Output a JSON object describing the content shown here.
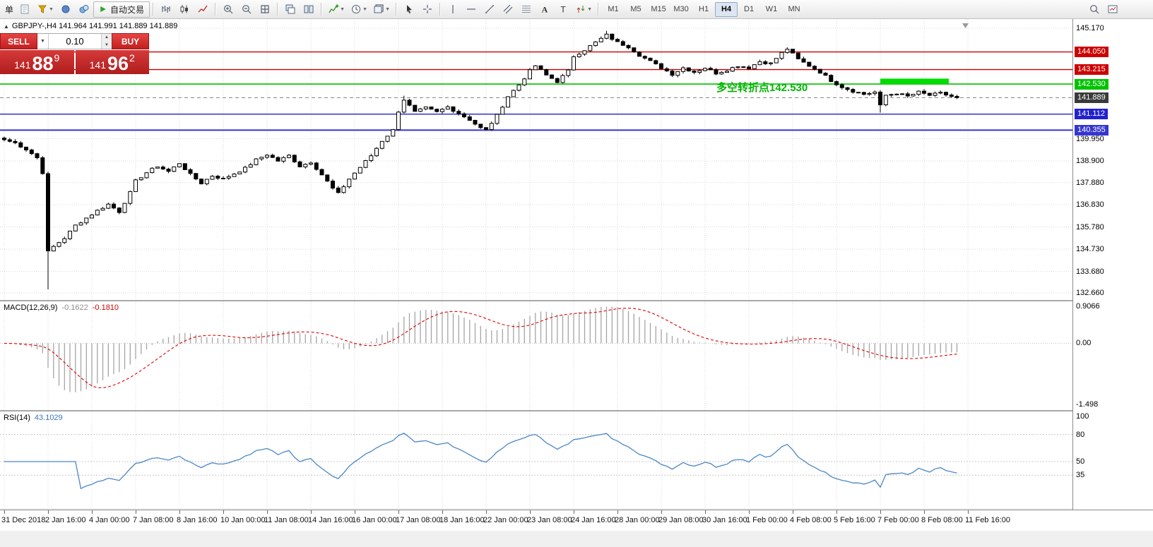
{
  "toolbar": {
    "new_order_label": "单",
    "autotrade_label": "自动交易",
    "icon_groups": [
      [
        "new-order-icon",
        "layouts-icon",
        "metaeditor-icon",
        "terminal-icon"
      ],
      [
        "bar-chart-icon",
        "candlestick-icon",
        "line-chart-icon"
      ],
      [
        "zoom-in-icon",
        "zoom-out-icon",
        "grid-icon"
      ],
      [
        "cascade-windows-icon",
        "tile-windows-icon"
      ],
      [
        "indicators-icon",
        "periods-icon",
        "templates-icon"
      ],
      [
        "cursor-icon",
        "crosshair-icon"
      ],
      [
        "vertical-line-icon",
        "horizontal-line-icon",
        "trendline-icon",
        "channel-icon",
        "fibonacci-icon",
        "text-icon",
        "label-icon",
        "arrows-icon"
      ]
    ],
    "caret_icons": [
      "indicators-icon",
      "periods-icon",
      "templates-icon",
      "arrows-icon",
      "layouts-icon"
    ],
    "timeframes": [
      "M1",
      "M5",
      "M15",
      "M30",
      "H1",
      "H4",
      "D1",
      "W1",
      "MN"
    ],
    "active_timeframe": "H4",
    "right_icons": [
      "search-icon",
      "new-chart-icon"
    ]
  },
  "symbol_header": {
    "toggle_glyph": "▲",
    "text": "GBPJPY-,H4 141.964 141.991 141.889 141.889"
  },
  "trade_panel": {
    "sell_label": "SELL",
    "buy_label": "BUY",
    "volume": "0.10",
    "bid_prefix": "141",
    "bid_big": "88",
    "bid_sup": "9",
    "ask_prefix": "141",
    "ask_big": "96",
    "ask_sup": "2"
  },
  "annotation": {
    "text": "多空转折点142.530",
    "color": "#00b400"
  },
  "chart_data": {
    "type": "candlestick",
    "symbol": "GBPJPY-",
    "timeframe": "H4",
    "quote_line": "141.964 141.991 141.889 141.889",
    "candle_count": 175,
    "last_close": 141.889,
    "price_axis": {
      "max": 145.17,
      "min": 132.66,
      "plain_labels": [
        "145.170",
        "139.950",
        "138.900",
        "137.880",
        "136.830",
        "135.780",
        "134.730",
        "133.680",
        "132.660"
      ]
    },
    "level_lines": [
      {
        "price": 144.05,
        "label": "144.050",
        "color": "#cc0000",
        "width": 1.4,
        "style": "solid"
      },
      {
        "price": 143.215,
        "label": "143.215",
        "color": "#cc0000",
        "width": 1.4,
        "style": "solid"
      },
      {
        "price": 142.53,
        "label": "142.530",
        "color": "#00c300",
        "width": 1.6,
        "style": "solid"
      },
      {
        "price": 141.889,
        "label": "141.889",
        "color": "#808080",
        "width": 1,
        "style": "dashed",
        "badge": "#3a3a3a"
      },
      {
        "price": 141.112,
        "label": "141.112",
        "color": "#2222cc",
        "width": 1.4,
        "style": "solid"
      },
      {
        "price": 140.355,
        "label": "140.355",
        "color": "#3535d0",
        "width": 2,
        "style": "solid"
      }
    ],
    "highlight_zone": {
      "start_index": 160,
      "end_index": 172.5,
      "price_top": 142.79,
      "price_bottom": 142.56,
      "color": "#00dd00"
    },
    "price_path_waypoints": [
      [
        0,
        139.9
      ],
      [
        2,
        139.75
      ],
      [
        4,
        139.45
      ],
      [
        6,
        139.05
      ],
      [
        7,
        138.35
      ],
      [
        8,
        134.6
      ],
      [
        9,
        134.85
      ],
      [
        11,
        135.25
      ],
      [
        13,
        135.85
      ],
      [
        15,
        136.2
      ],
      [
        17,
        136.55
      ],
      [
        19,
        136.85
      ],
      [
        21,
        136.5
      ],
      [
        23,
        137.4
      ],
      [
        24,
        137.95
      ],
      [
        26,
        138.35
      ],
      [
        28,
        138.65
      ],
      [
        30,
        138.4
      ],
      [
        32,
        138.8
      ],
      [
        34,
        138.25
      ],
      [
        36,
        137.85
      ],
      [
        38,
        138.2
      ],
      [
        40,
        138.05
      ],
      [
        42,
        138.3
      ],
      [
        44,
        138.55
      ],
      [
        46,
        138.95
      ],
      [
        48,
        139.2
      ],
      [
        50,
        138.9
      ],
      [
        52,
        139.15
      ],
      [
        54,
        138.65
      ],
      [
        56,
        138.85
      ],
      [
        58,
        138.25
      ],
      [
        60,
        137.6
      ],
      [
        61,
        137.35
      ],
      [
        63,
        138.05
      ],
      [
        65,
        138.6
      ],
      [
        67,
        139.15
      ],
      [
        69,
        139.85
      ],
      [
        71,
        140.35
      ],
      [
        72,
        141.25
      ],
      [
        73,
        141.8
      ],
      [
        75,
        141.2
      ],
      [
        77,
        141.4
      ],
      [
        79,
        141.2
      ],
      [
        81,
        141.45
      ],
      [
        83,
        141.15
      ],
      [
        85,
        140.85
      ],
      [
        87,
        140.45
      ],
      [
        88,
        140.35
      ],
      [
        90,
        141.05
      ],
      [
        92,
        141.95
      ],
      [
        94,
        142.5
      ],
      [
        96,
        143.15
      ],
      [
        97,
        143.4
      ],
      [
        99,
        142.95
      ],
      [
        101,
        142.65
      ],
      [
        103,
        143.15
      ],
      [
        104,
        143.85
      ],
      [
        106,
        144.15
      ],
      [
        108,
        144.5
      ],
      [
        110,
        144.85
      ],
      [
        112,
        144.5
      ],
      [
        114,
        144.3
      ],
      [
        116,
        143.9
      ],
      [
        118,
        143.6
      ],
      [
        120,
        143.3
      ],
      [
        122,
        143.0
      ],
      [
        124,
        143.3
      ],
      [
        126,
        143.1
      ],
      [
        128,
        143.3
      ],
      [
        130,
        143.05
      ],
      [
        132,
        143.2
      ],
      [
        134,
        143.4
      ],
      [
        136,
        143.3
      ],
      [
        138,
        143.6
      ],
      [
        140,
        143.5
      ],
      [
        142,
        144.0
      ],
      [
        143,
        144.2
      ],
      [
        145,
        143.7
      ],
      [
        147,
        143.4
      ],
      [
        149,
        143.1
      ],
      [
        151,
        142.7
      ],
      [
        153,
        142.4
      ],
      [
        155,
        142.2
      ],
      [
        157,
        142.05
      ],
      [
        159,
        142.15
      ],
      [
        160,
        141.5
      ],
      [
        161,
        142.0
      ],
      [
        163,
        142.1
      ],
      [
        165,
        141.95
      ],
      [
        167,
        142.15
      ],
      [
        169,
        142.0
      ],
      [
        171,
        142.1
      ],
      [
        173,
        141.95
      ],
      [
        174,
        141.889
      ]
    ],
    "spike_lows": {
      "8": 132.83,
      "160": 141.18
    },
    "spike_highs": {
      "8": 138.4,
      "73": 141.98,
      "110": 145.05,
      "143": 144.27
    },
    "time_labels": [
      "31 Dec 2018",
      "2 Jan 16:00",
      "4 Jan 00:00",
      "7 Jan 08:00",
      "8 Jan 16:00",
      "10 Jan 00:00",
      "11 Jan 08:00",
      "14 Jan 16:00",
      "16 Jan 00:00",
      "17 Jan 08:00",
      "18 Jan 16:00",
      "22 Jan 00:00",
      "23 Jan 08:00",
      "24 Jan 16:00",
      "28 Jan 00:00",
      "29 Jan 08:00",
      "30 Jan 16:00",
      "1 Feb 00:00",
      "4 Feb 08:00",
      "5 Feb 16:00",
      "7 Feb 00:00",
      "8 Feb 08:00",
      "11 Feb 16:00"
    ],
    "macd": {
      "label": "MACD(12,26,9)",
      "value_main": "-0.1622",
      "value_signal": "-0.1810",
      "params": [
        12,
        26,
        9
      ],
      "scale_labels": [
        {
          "v": 0.9066,
          "t": "0.9066"
        },
        {
          "v": 0,
          "t": "0.00"
        },
        {
          "v": -1.498,
          "t": "-1.498"
        }
      ],
      "max": 0.9066,
      "min": -1.498
    },
    "rsi": {
      "label": "RSI(14)",
      "value": "43.1029",
      "period": 14,
      "scale_labels": [
        {
          "v": 100,
          "t": "100"
        },
        {
          "v": 80,
          "t": "80"
        },
        {
          "v": 50,
          "t": "50"
        },
        {
          "v": 35,
          "t": "35"
        }
      ],
      "levels": [
        80,
        50,
        35
      ]
    }
  }
}
